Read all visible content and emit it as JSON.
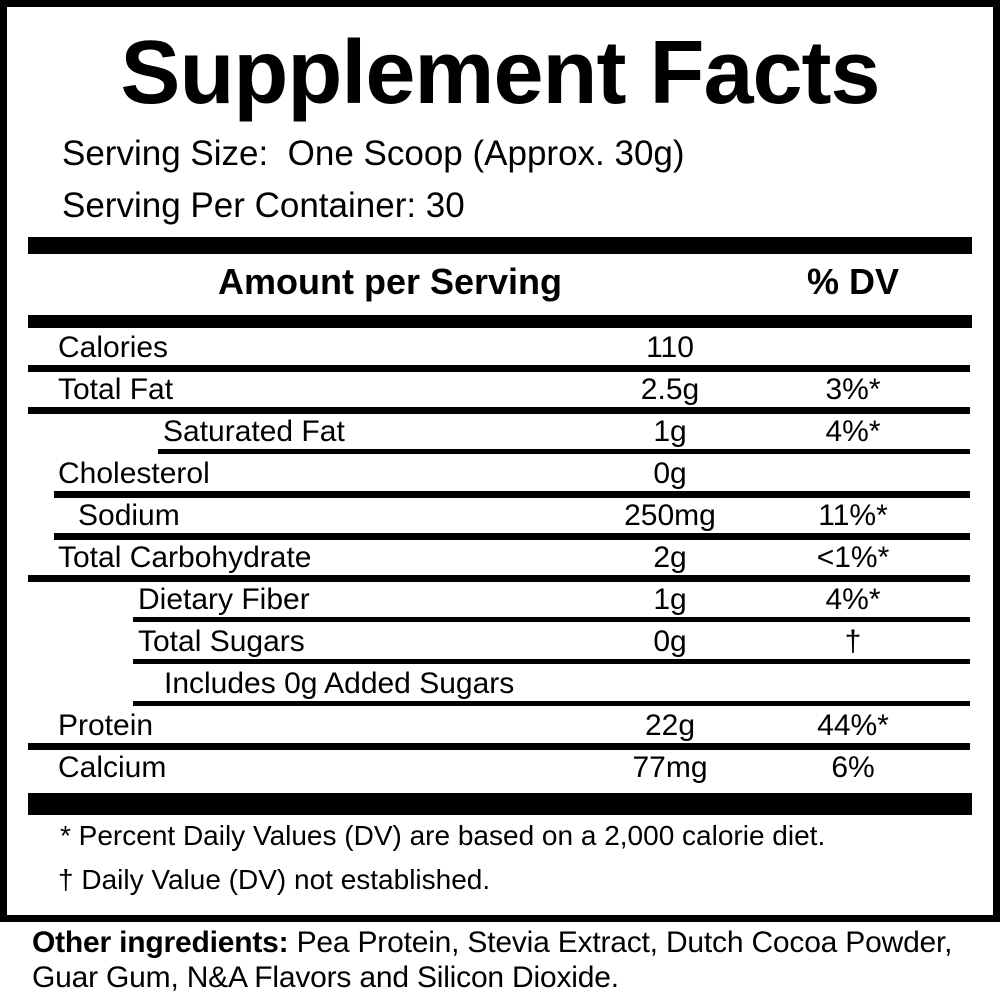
{
  "label": {
    "title": "Supplement Facts",
    "serving_size": "Serving Size:  One Scoop (Approx. 30g)",
    "serving_per_container": "Serving Per Container: 30",
    "columns": {
      "amount_header": "Amount per Serving",
      "dv_header": "% DV"
    },
    "rows": [
      {
        "name": "Calories",
        "amount": "110",
        "dv": ""
      },
      {
        "name": "Total Fat",
        "amount": "2.5g",
        "dv": "3%*"
      },
      {
        "name": "Saturated Fat",
        "amount": "1g",
        "dv": "4%*"
      },
      {
        "name": "Cholesterol",
        "amount": "0g",
        "dv": ""
      },
      {
        "name": "Sodium",
        "amount": "250mg",
        "dv": "11%*"
      },
      {
        "name": "Total Carbohydrate",
        "amount": "2g",
        "dv": "<1%*"
      },
      {
        "name": "Dietary Fiber",
        "amount": "1g",
        "dv": "4%*"
      },
      {
        "name": "Total Sugars",
        "amount": "0g",
        "dv": "†"
      },
      {
        "name": "Includes 0g Added Sugars",
        "amount": "",
        "dv": ""
      },
      {
        "name": "Protein",
        "amount": "22g",
        "dv": "44%*"
      },
      {
        "name": "Calcium",
        "amount": "77mg",
        "dv": "6%"
      }
    ],
    "footnotes": {
      "asterisk": "* Percent Daily Values (DV) are based on a 2,000 calorie diet.",
      "dagger": "† Daily Value (DV) not established."
    },
    "other_ingredients": {
      "heading": "Other ingredients:",
      "items": " Pea Protein, Stevia Extract, Dutch Cocoa Powder, Guar Gum, N&A Flavors and Silicon Dioxide."
    },
    "colors": {
      "ink": "#000000",
      "background": "#ffffff"
    }
  }
}
